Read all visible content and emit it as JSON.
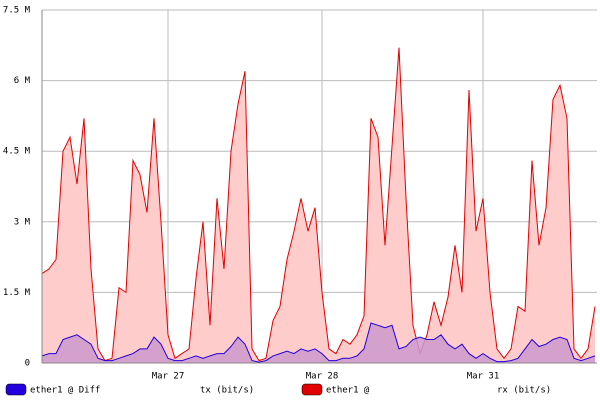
{
  "chart_data": {
    "type": "area",
    "categories": [
      null,
      null,
      null,
      null,
      null,
      null,
      null,
      null,
      null,
      null,
      null,
      null,
      null,
      null,
      null,
      null,
      null,
      null,
      "Mar 27",
      null,
      null,
      null,
      null,
      null,
      null,
      null,
      null,
      null,
      null,
      null,
      null,
      null,
      null,
      null,
      null,
      null,
      null,
      null,
      null,
      null,
      "Mar 28",
      null,
      null,
      null,
      null,
      null,
      null,
      null,
      null,
      null,
      null,
      null,
      null,
      null,
      null,
      null,
      null,
      null,
      null,
      null,
      null,
      null,
      null,
      "Mar 31",
      null,
      null,
      null,
      null,
      null,
      null,
      null,
      null,
      null,
      null,
      null,
      null,
      null,
      null,
      null,
      null
    ],
    "series": [
      {
        "name": "ether1 @",
        "unit": "rx (bit/s)",
        "color": "#e00000",
        "fill": "#ffcccc",
        "values": [
          1900000,
          2000000,
          2200000,
          4500000,
          4800000,
          3800000,
          5200000,
          2000000,
          300000,
          50000,
          100000,
          1600000,
          1500000,
          4300000,
          4000000,
          3200000,
          5200000,
          3000000,
          600000,
          100000,
          200000,
          300000,
          1800000,
          3000000,
          800000,
          3500000,
          2000000,
          4500000,
          5500000,
          6200000,
          300000,
          50000,
          100000,
          900000,
          1200000,
          2200000,
          2800000,
          3500000,
          2800000,
          3300000,
          1500000,
          300000,
          200000,
          500000,
          400000,
          600000,
          1000000,
          5200000,
          4800000,
          2500000,
          4600000,
          6700000,
          3500000,
          800000,
          200000,
          600000,
          1300000,
          800000,
          1400000,
          2500000,
          1500000,
          5800000,
          2800000,
          3500000,
          1500000,
          300000,
          100000,
          300000,
          1200000,
          1100000,
          4300000,
          2500000,
          3300000,
          5600000,
          5900000,
          5200000,
          300000,
          100000,
          300000,
          1200000
        ]
      },
      {
        "name": "ether1 @ Diff",
        "unit": "tx (bit/s)",
        "color": "#2200dd",
        "fill": "#cc99cc",
        "values": [
          150000,
          200000,
          200000,
          500000,
          550000,
          600000,
          500000,
          400000,
          100000,
          50000,
          50000,
          100000,
          150000,
          200000,
          300000,
          300000,
          550000,
          400000,
          100000,
          50000,
          50000,
          100000,
          150000,
          100000,
          150000,
          200000,
          200000,
          350000,
          550000,
          400000,
          50000,
          20000,
          50000,
          150000,
          200000,
          250000,
          200000,
          300000,
          250000,
          300000,
          200000,
          50000,
          50000,
          100000,
          100000,
          150000,
          300000,
          850000,
          800000,
          750000,
          800000,
          300000,
          350000,
          500000,
          550000,
          500000,
          500000,
          600000,
          400000,
          300000,
          400000,
          200000,
          100000,
          200000,
          100000,
          30000,
          30000,
          50000,
          100000,
          300000,
          500000,
          350000,
          400000,
          500000,
          550000,
          500000,
          100000,
          50000,
          100000,
          150000
        ]
      }
    ],
    "ylim": [
      0,
      7500000
    ],
    "yticks": [
      0,
      {
        "value": 1500000,
        "label": "1.5 M"
      },
      {
        "value": 3000000,
        "label": "3 M"
      },
      {
        "value": 4500000,
        "label": "4.5 M"
      },
      {
        "value": 6000000,
        "label": "6 M"
      },
      {
        "value": 7500000,
        "label": "7.5 M"
      }
    ],
    "grid": true
  }
}
